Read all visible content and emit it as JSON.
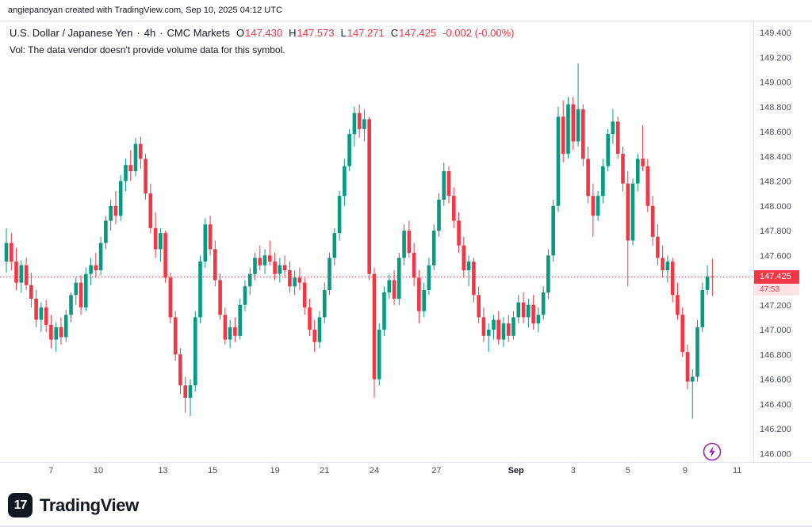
{
  "attribution": "angiepanoyan created with TradingView.com, Sep 10, 2025 04:12 UTC",
  "header": {
    "symbol": "U.S. Dollar / Japanese Yen",
    "dot": "·",
    "interval": "4h",
    "exchange": "CMC Markets",
    "ohlc": {
      "o_label": "O",
      "o": "147.430",
      "h_label": "H",
      "h": "147.573",
      "l_label": "L",
      "l": "147.271",
      "c_label": "C",
      "c": "147.425",
      "change": "-0.002 (-0.00%)"
    },
    "vol_note": "Vol: The data vendor doesn't provide volume data for this symbol."
  },
  "price_scale": {
    "last_price_label": "147.425",
    "countdown": "47:53"
  },
  "footer": {
    "logo_mark": "17",
    "logo_text": "TradingView"
  },
  "colors": {
    "up": "#089981",
    "down": "#F23645",
    "text": "#131722",
    "axis_text": "#4A4E59",
    "grid": "#E0E3EB",
    "badge_bg": "#F23645",
    "badge_text": "#FFFFFF",
    "countdown_bg": "#FDE3E5",
    "countdown_text": "#F23645",
    "lightning": "#9C27B0"
  },
  "chart_data": {
    "type": "candlestick",
    "title": "U.S. Dollar / Japanese Yen · 4h · CMC Markets",
    "grid": false,
    "y_range": [
      145.9,
      149.49
    ],
    "last_price": 147.425,
    "y_ticks": [
      "149.400",
      "149.200",
      "149.000",
      "148.800",
      "148.600",
      "148.400",
      "148.200",
      "148.000",
      "147.800",
      "147.600",
      "147.400",
      "147.200",
      "147.000",
      "146.800",
      "146.600",
      "146.400",
      "146.200",
      "146.000"
    ],
    "x_labels": [
      {
        "text": "7",
        "i": 9,
        "bold": false
      },
      {
        "text": "10",
        "i": 18.5,
        "bold": false
      },
      {
        "text": "13",
        "i": 31.5,
        "bold": false
      },
      {
        "text": "15",
        "i": 41.5,
        "bold": false
      },
      {
        "text": "19",
        "i": 54,
        "bold": false
      },
      {
        "text": "21",
        "i": 64,
        "bold": false
      },
      {
        "text": "24",
        "i": 74,
        "bold": false
      },
      {
        "text": "27",
        "i": 86.5,
        "bold": false
      },
      {
        "text": "Sep",
        "i": 102.5,
        "bold": true
      },
      {
        "text": "3",
        "i": 114,
        "bold": false
      },
      {
        "text": "5",
        "i": 125,
        "bold": false
      },
      {
        "text": "9",
        "i": 136.5,
        "bold": false
      },
      {
        "text": "11",
        "i": 147,
        "bold": false
      }
    ],
    "candles": [
      [
        147.55,
        147.82,
        147.46,
        147.7
      ],
      [
        147.7,
        147.78,
        147.48,
        147.55
      ],
      [
        147.55,
        147.66,
        147.32,
        147.38
      ],
      [
        147.38,
        147.56,
        147.3,
        147.52
      ],
      [
        147.52,
        147.58,
        147.32,
        147.36
      ],
      [
        147.36,
        147.46,
        147.18,
        147.25
      ],
      [
        147.25,
        147.32,
        147.02,
        147.08
      ],
      [
        147.08,
        147.22,
        146.98,
        147.18
      ],
      [
        147.18,
        147.24,
        146.98,
        147.04
      ],
      [
        147.04,
        147.12,
        146.85,
        146.92
      ],
      [
        146.92,
        147.06,
        146.82,
        147.02
      ],
      [
        147.02,
        147.1,
        146.88,
        146.94
      ],
      [
        146.94,
        147.16,
        146.9,
        147.12
      ],
      [
        147.12,
        147.3,
        147.06,
        147.28
      ],
      [
        147.28,
        147.42,
        147.2,
        147.38
      ],
      [
        147.38,
        147.44,
        147.12,
        147.18
      ],
      [
        147.18,
        147.5,
        147.15,
        147.45
      ],
      [
        147.45,
        147.58,
        147.36,
        147.52
      ],
      [
        147.52,
        147.62,
        147.42,
        147.48
      ],
      [
        147.48,
        147.75,
        147.44,
        147.7
      ],
      [
        147.7,
        147.92,
        147.65,
        147.88
      ],
      [
        147.88,
        148.05,
        147.8,
        148.0
      ],
      [
        148.0,
        148.12,
        147.85,
        147.92
      ],
      [
        147.92,
        148.25,
        147.88,
        148.2
      ],
      [
        148.2,
        148.38,
        148.12,
        148.33
      ],
      [
        148.33,
        148.45,
        148.2,
        148.28
      ],
      [
        148.28,
        148.55,
        148.24,
        148.5
      ],
      [
        148.5,
        148.56,
        148.3,
        148.38
      ],
      [
        148.38,
        148.42,
        148.05,
        148.1
      ],
      [
        148.1,
        148.18,
        147.78,
        147.82
      ],
      [
        147.82,
        147.95,
        147.58,
        147.65
      ],
      [
        147.65,
        147.82,
        147.55,
        147.78
      ],
      [
        147.78,
        147.8,
        147.38,
        147.42
      ],
      [
        147.42,
        147.46,
        147.05,
        147.1
      ],
      [
        147.1,
        147.15,
        146.75,
        146.8
      ],
      [
        146.8,
        146.85,
        146.48,
        146.55
      ],
      [
        146.55,
        146.62,
        146.33,
        146.45
      ],
      [
        146.45,
        146.6,
        146.3,
        146.55
      ],
      [
        146.55,
        147.15,
        146.5,
        147.1
      ],
      [
        147.1,
        147.6,
        147.05,
        147.55
      ],
      [
        147.55,
        147.9,
        147.5,
        147.85
      ],
      [
        147.85,
        147.92,
        147.6,
        147.65
      ],
      [
        147.65,
        147.72,
        147.35,
        147.4
      ],
      [
        147.4,
        147.45,
        147.08,
        147.12
      ],
      [
        147.12,
        147.18,
        146.88,
        146.92
      ],
      [
        146.92,
        147.08,
        146.85,
        147.02
      ],
      [
        147.02,
        147.1,
        146.9,
        146.95
      ],
      [
        146.95,
        147.25,
        146.92,
        147.2
      ],
      [
        147.2,
        147.4,
        147.15,
        147.35
      ],
      [
        147.35,
        147.5,
        147.28,
        147.45
      ],
      [
        147.45,
        147.62,
        147.4,
        147.58
      ],
      [
        147.58,
        147.68,
        147.48,
        147.52
      ],
      [
        147.52,
        147.65,
        147.45,
        147.6
      ],
      [
        147.6,
        147.72,
        147.52,
        147.55
      ],
      [
        147.55,
        147.62,
        147.4,
        147.45
      ],
      [
        147.45,
        147.58,
        147.38,
        147.52
      ],
      [
        147.52,
        147.6,
        147.42,
        147.48
      ],
      [
        147.48,
        147.55,
        147.3,
        147.35
      ],
      [
        147.35,
        147.48,
        147.28,
        147.42
      ],
      [
        147.42,
        147.5,
        147.32,
        147.38
      ],
      [
        147.38,
        147.42,
        147.12,
        147.18
      ],
      [
        147.18,
        147.25,
        146.95,
        147.0
      ],
      [
        147.0,
        147.08,
        146.82,
        146.9
      ],
      [
        146.9,
        147.15,
        146.85,
        147.1
      ],
      [
        147.1,
        147.38,
        147.05,
        147.32
      ],
      [
        147.32,
        147.62,
        147.28,
        147.58
      ],
      [
        147.58,
        147.82,
        147.52,
        147.78
      ],
      [
        147.78,
        148.12,
        147.72,
        148.08
      ],
      [
        148.08,
        148.38,
        148.0,
        148.32
      ],
      [
        148.32,
        148.62,
        148.28,
        148.58
      ],
      [
        148.58,
        148.8,
        148.48,
        148.75
      ],
      [
        148.75,
        148.82,
        148.55,
        148.62
      ],
      [
        148.62,
        148.78,
        148.52,
        148.7
      ],
      [
        148.7,
        148.72,
        147.4,
        147.45
      ],
      [
        147.45,
        147.5,
        146.45,
        146.6
      ],
      [
        146.6,
        147.05,
        146.55,
        147.0
      ],
      [
        147.0,
        147.35,
        146.95,
        147.3
      ],
      [
        147.3,
        147.45,
        147.25,
        147.4
      ],
      [
        147.4,
        147.48,
        147.2,
        147.25
      ],
      [
        147.25,
        147.62,
        147.2,
        147.58
      ],
      [
        147.58,
        147.85,
        147.52,
        147.8
      ],
      [
        147.8,
        147.88,
        147.58,
        147.62
      ],
      [
        147.62,
        147.7,
        147.35,
        147.42
      ],
      [
        147.42,
        147.48,
        147.05,
        147.15
      ],
      [
        147.15,
        147.38,
        147.1,
        147.32
      ],
      [
        147.32,
        147.58,
        147.28,
        147.52
      ],
      [
        147.52,
        147.85,
        147.48,
        147.8
      ],
      [
        147.8,
        148.1,
        147.75,
        148.05
      ],
      [
        148.05,
        148.35,
        148.0,
        148.28
      ],
      [
        148.28,
        148.32,
        148.02,
        148.08
      ],
      [
        148.08,
        148.15,
        147.82,
        147.88
      ],
      [
        147.88,
        147.95,
        147.62,
        147.68
      ],
      [
        147.68,
        147.75,
        147.42,
        147.48
      ],
      [
        147.48,
        147.6,
        147.35,
        147.55
      ],
      [
        147.55,
        147.58,
        147.22,
        147.28
      ],
      [
        147.28,
        147.35,
        147.05,
        147.1
      ],
      [
        147.1,
        147.18,
        146.9,
        146.95
      ],
      [
        146.95,
        147.05,
        146.82,
        147.0
      ],
      [
        147.0,
        147.12,
        146.92,
        147.08
      ],
      [
        147.08,
        147.15,
        146.88,
        146.92
      ],
      [
        146.92,
        147.1,
        146.86,
        147.05
      ],
      [
        147.05,
        147.12,
        146.9,
        146.95
      ],
      [
        146.95,
        147.15,
        146.92,
        147.1
      ],
      [
        147.1,
        147.28,
        147.05,
        147.22
      ],
      [
        147.22,
        147.3,
        147.05,
        147.1
      ],
      [
        147.1,
        147.25,
        147.02,
        147.2
      ],
      [
        147.2,
        147.28,
        147.0,
        147.05
      ],
      [
        147.05,
        147.18,
        146.98,
        147.12
      ],
      [
        147.12,
        147.35,
        147.08,
        147.3
      ],
      [
        147.3,
        147.65,
        147.25,
        147.6
      ],
      [
        147.6,
        148.05,
        147.55,
        148.0
      ],
      [
        148.0,
        148.8,
        147.95,
        148.72
      ],
      [
        148.72,
        148.85,
        148.35,
        148.42
      ],
      [
        148.42,
        148.88,
        148.38,
        148.82
      ],
      [
        148.82,
        148.88,
        148.45,
        148.52
      ],
      [
        148.52,
        149.15,
        148.48,
        148.78
      ],
      [
        148.78,
        148.82,
        148.32,
        148.38
      ],
      [
        148.38,
        148.48,
        148.02,
        148.08
      ],
      [
        148.08,
        148.18,
        147.75,
        147.92
      ],
      [
        147.92,
        148.12,
        147.88,
        148.08
      ],
      [
        148.08,
        148.38,
        148.02,
        148.32
      ],
      [
        148.32,
        148.62,
        148.28,
        148.58
      ],
      [
        148.58,
        148.78,
        148.5,
        148.68
      ],
      [
        148.68,
        148.72,
        148.38,
        148.42
      ],
      [
        148.42,
        148.48,
        148.12,
        148.18
      ],
      [
        148.18,
        148.28,
        147.35,
        147.72
      ],
      [
        147.72,
        148.22,
        147.68,
        148.18
      ],
      [
        148.18,
        148.42,
        148.12,
        148.38
      ],
      [
        148.38,
        148.65,
        148.28,
        148.32
      ],
      [
        148.32,
        148.38,
        147.95,
        148.0
      ],
      [
        148.0,
        148.08,
        147.68,
        147.75
      ],
      [
        147.75,
        147.85,
        147.52,
        147.58
      ],
      [
        147.58,
        147.68,
        147.42,
        147.48
      ],
      [
        147.48,
        147.6,
        147.38,
        147.55
      ],
      [
        147.55,
        147.58,
        147.22,
        147.28
      ],
      [
        147.28,
        147.38,
        147.08,
        147.12
      ],
      [
        147.12,
        147.18,
        146.78,
        146.82
      ],
      [
        146.82,
        146.88,
        146.52,
        146.58
      ],
      [
        146.58,
        146.68,
        146.28,
        146.62
      ],
      [
        146.62,
        147.08,
        146.58,
        147.02
      ],
      [
        147.02,
        147.38,
        146.98,
        147.32
      ],
      [
        147.32,
        147.52,
        147.28,
        147.43
      ],
      [
        147.43,
        147.573,
        147.271,
        147.425
      ]
    ]
  }
}
